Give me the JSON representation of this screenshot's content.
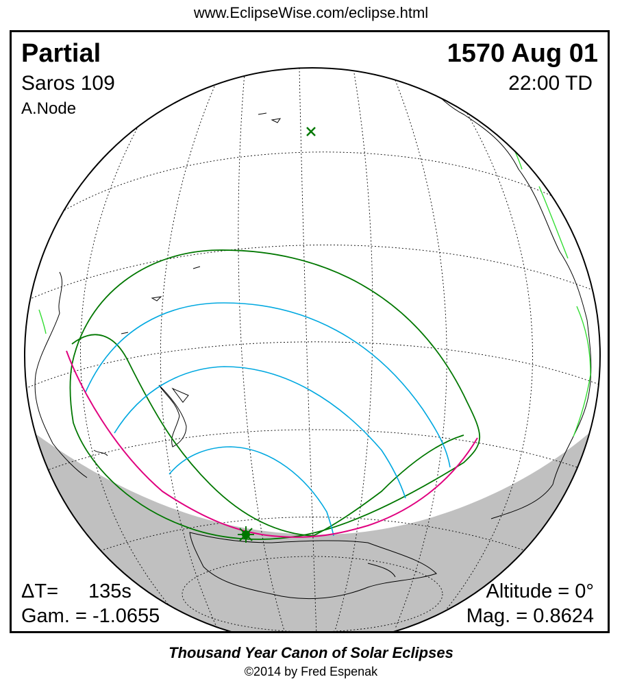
{
  "header": {
    "url": "www.EclipseWise.com/eclipse.html"
  },
  "eclipse": {
    "type": "Partial",
    "saros": "Saros 109",
    "node": "A.Node",
    "date": "1570 Aug 01",
    "time": "22:00 TD",
    "delta_t_label": "ΔT=",
    "delta_t_value": "135s",
    "gamma": "Gam. = -1.0655",
    "altitude": "Altitude =  0°",
    "magnitude": "Mag. = 0.8624"
  },
  "footer": {
    "title": "Thousand Year Canon of Solar Eclipses",
    "copyright": "©2014 by Fred Espenak"
  },
  "colors": {
    "night": "#c0c0c0",
    "penumbra_limit": "#007700",
    "magnitude_curves": "#00a8e0",
    "rise_set_curve": "#e0007f",
    "coastline_highlight": "#33dd33",
    "marker": "#007700"
  }
}
